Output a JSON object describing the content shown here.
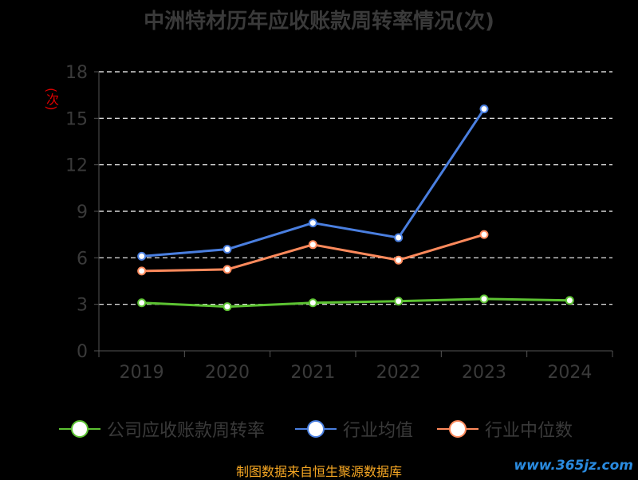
{
  "title": "中洲特材历年应收账款周转率情况(次)",
  "y_unit": "(次)",
  "source_note": "制图数据来自恒生聚源数据库",
  "watermark": "www.365jz.com",
  "chart_data": {
    "type": "line",
    "categories": [
      "2019",
      "2020",
      "2021",
      "2022",
      "2023",
      "2024"
    ],
    "ylim": [
      0,
      18
    ],
    "yticks": [
      0,
      3,
      6,
      9,
      12,
      15,
      18
    ],
    "grid": true,
    "legend_position": "bottom",
    "series": [
      {
        "name": "公司应收账款周转率",
        "color": "#5cc232",
        "values": [
          3.1,
          2.85,
          3.1,
          3.2,
          3.35,
          3.25
        ]
      },
      {
        "name": "行业均值",
        "color": "#4a7fe0",
        "values": [
          6.1,
          6.55,
          8.25,
          7.3,
          15.6,
          null
        ]
      },
      {
        "name": "行业中位数",
        "color": "#ff8a5c",
        "values": [
          5.15,
          5.25,
          6.85,
          5.85,
          7.5,
          null
        ]
      }
    ]
  }
}
